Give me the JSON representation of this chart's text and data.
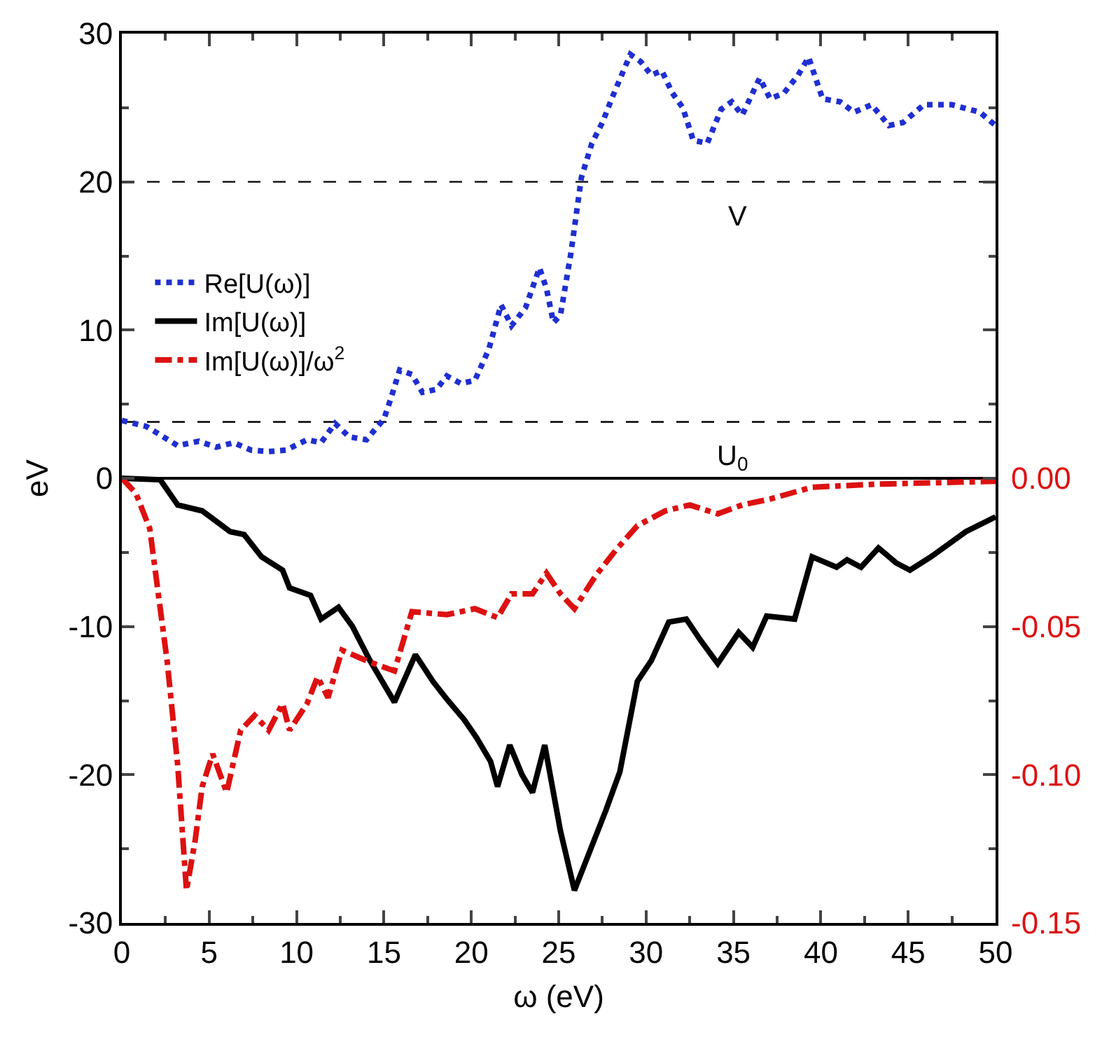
{
  "chart_data": {
    "type": "line",
    "xlabel": "ω (eV)",
    "ylabel": "eV",
    "xlim": [
      0,
      50
    ],
    "xticks": [
      0,
      5,
      10,
      15,
      20,
      25,
      30,
      35,
      40,
      45,
      50
    ],
    "ylim": [
      -30,
      30
    ],
    "yticks": [
      -30,
      -20,
      -10,
      0,
      10,
      20,
      30
    ],
    "y2lim": [
      -0.15,
      0.15
    ],
    "y2ticks": [
      {
        "value": -0.15,
        "label": "-0.15"
      },
      {
        "value": -0.1,
        "label": "-0.10"
      },
      {
        "value": -0.05,
        "label": "-0.05"
      },
      {
        "value": 0,
        "label": "0.00"
      }
    ],
    "grid": false,
    "legend": "top left",
    "marker": "none",
    "ref_lines": [
      {
        "axis": "y",
        "value": 20,
        "label": "V",
        "color": "#000000",
        "line_style": "dashed"
      },
      {
        "axis": "y",
        "value": 3.8,
        "label": "U$_{0}$",
        "color": "#000000",
        "line_style": "dashed"
      },
      {
        "axis": "y",
        "value": 0,
        "color": "#000000",
        "line_style": "solid"
      }
    ],
    "series": [
      {
        "name": "Re[U(ω)]",
        "color": "#1f2fd0",
        "line_style": "dotted",
        "x": [
          0,
          1.4,
          3.2,
          4.4,
          5.4,
          6.4,
          7.4,
          8.4,
          9.4,
          10.6,
          11.4,
          12.2,
          13,
          14,
          15,
          15.4,
          15.9,
          16.6,
          17.2,
          18,
          18.6,
          19.4,
          20.2,
          21,
          21.7,
          22.3,
          23.1,
          23.9,
          24.3,
          24.7,
          25.1,
          25.7,
          26.3,
          26.9,
          27.5,
          28.1,
          29.1,
          29.7,
          30.3,
          30.9,
          31.5,
          32.1,
          32.7,
          33.5,
          34.3,
          34.9,
          35.5,
          36.5,
          37.1,
          37.9,
          38.7,
          39.3,
          40.1,
          41.1,
          41.9,
          42.9,
          43.9,
          44.7,
          45.9,
          47.5,
          49.1,
          50
        ],
        "values": [
          3.9,
          3.5,
          2.2,
          2.5,
          2.1,
          2.4,
          1.9,
          1.8,
          1.9,
          2.6,
          2.4,
          3.7,
          2.8,
          2.6,
          4,
          5.4,
          7.3,
          7,
          5.8,
          6,
          6.9,
          6.4,
          6.6,
          8.7,
          11.7,
          10.3,
          11.5,
          14.2,
          12.8,
          10.5,
          11,
          15.2,
          20.3,
          22.6,
          24,
          25.8,
          28.6,
          28.1,
          27.2,
          27.5,
          26,
          25,
          22.8,
          22.6,
          24.9,
          25.4,
          24.5,
          27,
          25.6,
          26,
          27.2,
          28.4,
          25.6,
          25.4,
          24.7,
          25.2,
          23.8,
          24,
          25.2,
          25.2,
          24.7,
          23.8
        ]
      },
      {
        "name": "Im[U(ω)]",
        "color": "#000000",
        "line_style": "solid",
        "x": [
          0,
          2.2,
          3.2,
          4.6,
          6.2,
          7,
          8,
          9.2,
          9.6,
          10.8,
          11.4,
          12.4,
          13.2,
          14.2,
          15.6,
          16.8,
          17.8,
          18.6,
          19.6,
          20.3,
          21.1,
          21.5,
          22.2,
          22.9,
          23.5,
          24.2,
          25.1,
          25.9,
          26.7,
          27.7,
          28.5,
          29.5,
          30.3,
          31.3,
          32.3,
          33.1,
          34.1,
          35.3,
          36.1,
          36.9,
          38.5,
          39.5,
          40.9,
          41.5,
          42.3,
          43.3,
          44.3,
          45.1,
          46.3,
          48.3,
          50
        ],
        "values": [
          0,
          -0.1,
          -1.8,
          -2.2,
          -3.6,
          -3.8,
          -5.3,
          -6.2,
          -7.4,
          -7.9,
          -9.5,
          -8.7,
          -10,
          -12.3,
          -15.1,
          -11.9,
          -13.7,
          -14.9,
          -16.3,
          -17.5,
          -19.1,
          -20.8,
          -18,
          -20,
          -21.2,
          -18,
          -23.8,
          -27.8,
          -25.4,
          -22.4,
          -19.8,
          -13.7,
          -12.3,
          -9.7,
          -9.5,
          -10.9,
          -12.5,
          -10.4,
          -11.4,
          -9.3,
          -9.5,
          -5.3,
          -6,
          -5.5,
          -6,
          -4.7,
          -5.7,
          -6.2,
          -5.3,
          -3.6,
          -2.6
        ]
      },
      {
        "name": "Im[U(ω)]/ω$^{2}$",
        "color": "#dd1111",
        "line_style": "dashdot",
        "axis": "y2",
        "x": [
          0,
          0.8,
          1.6,
          2.6,
          3.2,
          3.7,
          4.2,
          4.6,
          5.2,
          6,
          6.8,
          7.6,
          8.4,
          9.2,
          9.6,
          10.6,
          11.2,
          11.8,
          12.6,
          14.2,
          15.6,
          16.6,
          18.6,
          20.2,
          21.5,
          22.3,
          23.5,
          24.3,
          25.1,
          25.9,
          27.1,
          28.3,
          29.5,
          31.1,
          32.5,
          34.1,
          35.5,
          37.1,
          39.5,
          43.1,
          50
        ],
        "values": [
          0,
          -0.005,
          -0.017,
          -0.062,
          -0.097,
          -0.139,
          -0.122,
          -0.104,
          -0.093,
          -0.106,
          -0.085,
          -0.08,
          -0.085,
          -0.076,
          -0.085,
          -0.076,
          -0.067,
          -0.074,
          -0.058,
          -0.062,
          -0.065,
          -0.045,
          -0.046,
          -0.044,
          -0.047,
          -0.039,
          -0.039,
          -0.032,
          -0.039,
          -0.044,
          -0.033,
          -0.024,
          -0.016,
          -0.011,
          -0.009,
          -0.012,
          -0.009,
          -0.007,
          -0.003,
          -0.002,
          -0.001
        ]
      }
    ]
  }
}
